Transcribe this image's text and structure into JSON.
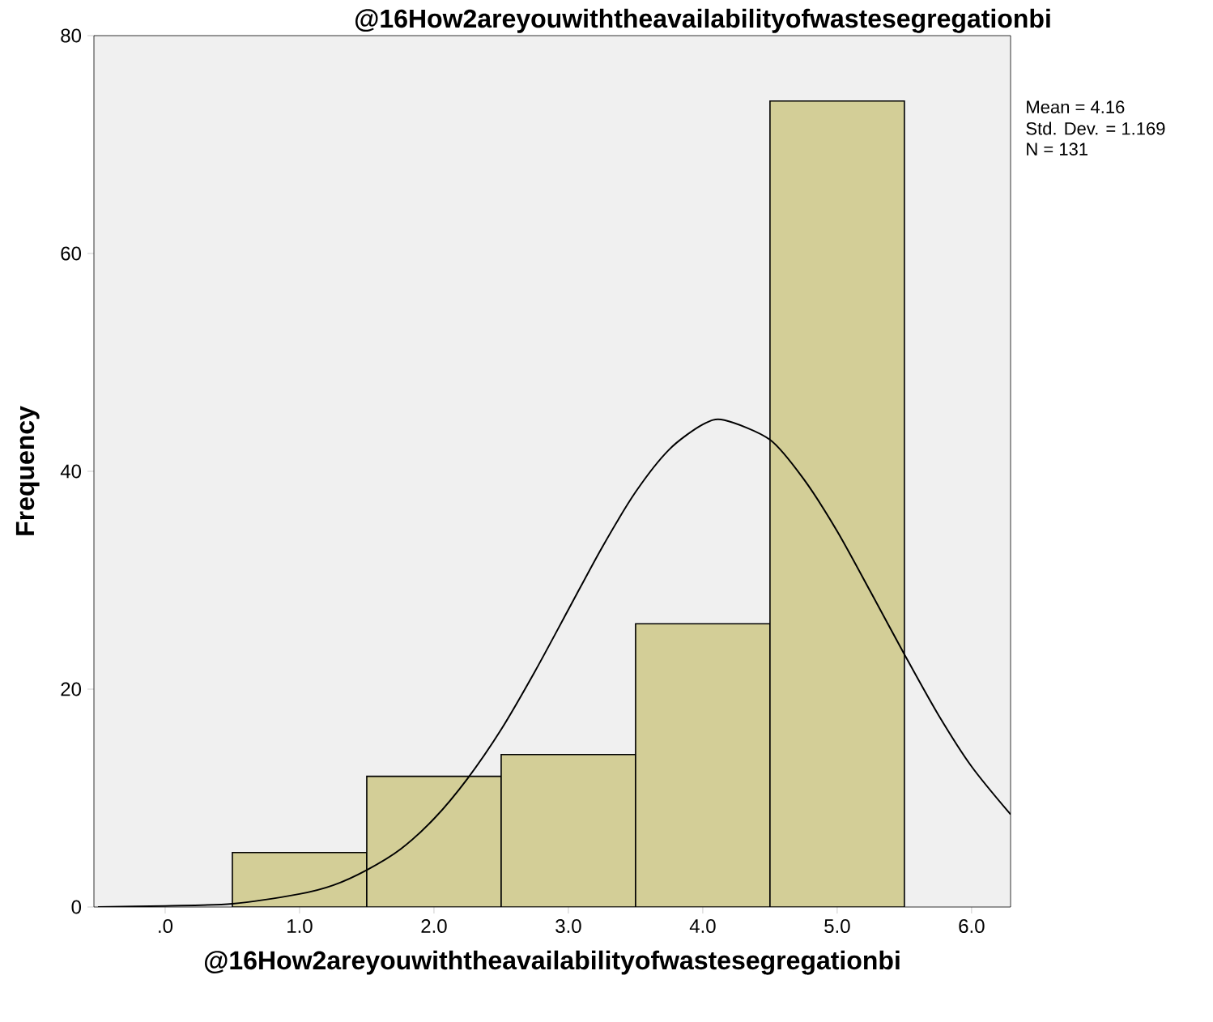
{
  "chart_data": {
    "type": "histogram",
    "title": "@16How2areyouwiththeavailabilityofwastesegregationbi",
    "xlabel": "@16How2areyouwiththeavailabilityofwastesegregationbi",
    "ylabel": "Frequency",
    "bins": [
      0.5,
      1.5,
      2.5,
      3.5,
      4.5,
      5.5
    ],
    "values": [
      5,
      12,
      14,
      26,
      74
    ],
    "color": "#d3ce97",
    "series": [
      {
        "type": "line",
        "color": "#000000",
        "x": [
          -0.5,
          0,
          0.5,
          1.0,
          1.25,
          1.5,
          1.75,
          2.0,
          2.25,
          2.5,
          2.75,
          3.0,
          3.25,
          3.5,
          3.75,
          4.0,
          4.16,
          4.5,
          4.75,
          5.0,
          5.25,
          5.5,
          5.75,
          6.0,
          6.29
        ],
        "values": [
          0.0,
          0.1,
          0.3,
          1.2,
          2.0,
          3.4,
          5.3,
          8.1,
          11.8,
          16.3,
          21.6,
          27.3,
          33.0,
          38.1,
          42.0,
          44.3,
          44.7,
          42.9,
          39.3,
          34.5,
          28.9,
          23.2,
          17.7,
          12.9,
          8.5
        ]
      }
    ],
    "xlim": [
      -0.53,
      6.29
    ],
    "ylim": [
      0,
      80
    ],
    "xticks": [
      {
        "value": 0,
        "label": ".0"
      },
      {
        "value": 1,
        "label": "1.0"
      },
      {
        "value": 2,
        "label": "2.0"
      },
      {
        "value": 3,
        "label": "3.0"
      },
      {
        "value": 4,
        "label": "4.0"
      },
      {
        "value": 5,
        "label": "5.0"
      },
      {
        "value": 6,
        "label": "6.0"
      }
    ],
    "yticks": [
      0,
      20,
      40,
      60,
      80
    ],
    "annotations": [
      "Mean = 4.16",
      "Std. Dev. = 1.169",
      "N = 131"
    ]
  }
}
